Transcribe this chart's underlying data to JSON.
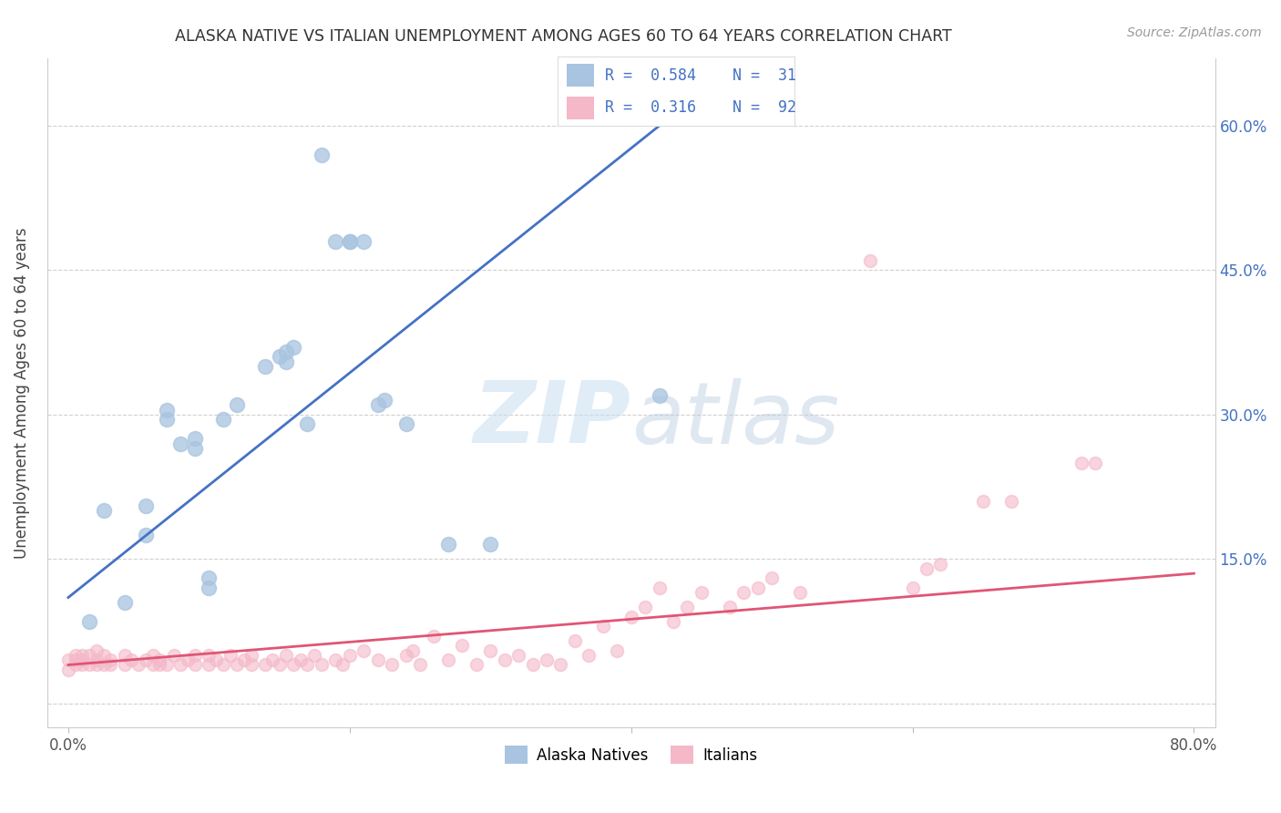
{
  "title": "ALASKA NATIVE VS ITALIAN UNEMPLOYMENT AMONG AGES 60 TO 64 YEARS CORRELATION CHART",
  "source": "Source: ZipAtlas.com",
  "ylabel": "Unemployment Among Ages 60 to 64 years",
  "xlim_min": -0.015,
  "xlim_max": 0.815,
  "ylim_min": -0.025,
  "ylim_max": 0.67,
  "alaska_color": "#a8c4e0",
  "alaska_line_color": "#4472c4",
  "italian_color": "#f4b8c8",
  "italian_line_color": "#e05575",
  "alaska_scatter_x": [
    0.015,
    0.025,
    0.04,
    0.055,
    0.055,
    0.07,
    0.07,
    0.08,
    0.09,
    0.09,
    0.1,
    0.1,
    0.11,
    0.12,
    0.14,
    0.15,
    0.155,
    0.155,
    0.16,
    0.17,
    0.18,
    0.19,
    0.2,
    0.2,
    0.21,
    0.22,
    0.225,
    0.24,
    0.27,
    0.3,
    0.42
  ],
  "alaska_scatter_y": [
    0.085,
    0.2,
    0.105,
    0.175,
    0.205,
    0.295,
    0.305,
    0.27,
    0.265,
    0.275,
    0.13,
    0.12,
    0.295,
    0.31,
    0.35,
    0.36,
    0.355,
    0.365,
    0.37,
    0.29,
    0.57,
    0.48,
    0.48,
    0.48,
    0.48,
    0.31,
    0.315,
    0.29,
    0.165,
    0.165,
    0.32
  ],
  "italian_scatter_x": [
    0.0,
    0.0,
    0.005,
    0.005,
    0.005,
    0.01,
    0.01,
    0.01,
    0.015,
    0.015,
    0.02,
    0.02,
    0.02,
    0.025,
    0.025,
    0.03,
    0.03,
    0.04,
    0.04,
    0.045,
    0.05,
    0.055,
    0.06,
    0.06,
    0.065,
    0.065,
    0.07,
    0.075,
    0.08,
    0.085,
    0.09,
    0.09,
    0.1,
    0.1,
    0.105,
    0.11,
    0.115,
    0.12,
    0.125,
    0.13,
    0.13,
    0.14,
    0.145,
    0.15,
    0.155,
    0.16,
    0.165,
    0.17,
    0.175,
    0.18,
    0.19,
    0.195,
    0.2,
    0.21,
    0.22,
    0.23,
    0.24,
    0.245,
    0.25,
    0.26,
    0.27,
    0.28,
    0.29,
    0.3,
    0.31,
    0.32,
    0.33,
    0.34,
    0.35,
    0.36,
    0.37,
    0.38,
    0.39,
    0.4,
    0.41,
    0.42,
    0.43,
    0.44,
    0.45,
    0.47,
    0.48,
    0.49,
    0.5,
    0.52,
    0.57,
    0.6,
    0.61,
    0.62,
    0.65,
    0.67,
    0.72,
    0.73
  ],
  "italian_scatter_y": [
    0.035,
    0.045,
    0.04,
    0.045,
    0.05,
    0.04,
    0.045,
    0.05,
    0.04,
    0.05,
    0.04,
    0.045,
    0.055,
    0.04,
    0.05,
    0.04,
    0.045,
    0.04,
    0.05,
    0.045,
    0.04,
    0.045,
    0.04,
    0.05,
    0.04,
    0.045,
    0.04,
    0.05,
    0.04,
    0.045,
    0.04,
    0.05,
    0.04,
    0.05,
    0.045,
    0.04,
    0.05,
    0.04,
    0.045,
    0.04,
    0.05,
    0.04,
    0.045,
    0.04,
    0.05,
    0.04,
    0.045,
    0.04,
    0.05,
    0.04,
    0.045,
    0.04,
    0.05,
    0.055,
    0.045,
    0.04,
    0.05,
    0.055,
    0.04,
    0.07,
    0.045,
    0.06,
    0.04,
    0.055,
    0.045,
    0.05,
    0.04,
    0.045,
    0.04,
    0.065,
    0.05,
    0.08,
    0.055,
    0.09,
    0.1,
    0.12,
    0.085,
    0.1,
    0.115,
    0.1,
    0.115,
    0.12,
    0.13,
    0.115,
    0.46,
    0.12,
    0.14,
    0.145,
    0.21,
    0.21,
    0.25,
    0.25
  ],
  "alaska_line_x0": 0.0,
  "alaska_line_y0": 0.11,
  "alaska_line_x1": 0.42,
  "alaska_line_y1": 0.6,
  "italian_line_x0": 0.0,
  "italian_line_y0": 0.04,
  "italian_line_x1": 0.8,
  "italian_line_y1": 0.135
}
